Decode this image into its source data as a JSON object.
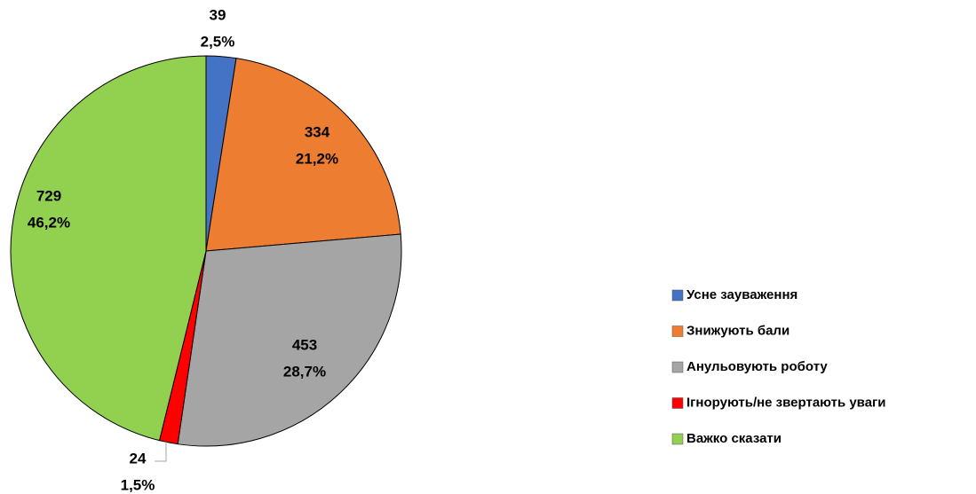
{
  "chart_data": {
    "type": "pie",
    "categories": [
      "Усне зауваження",
      "Знижують бали",
      "Анульовують роботу",
      "Ігнорують/не звертають уваги",
      "Важко сказати"
    ],
    "values": [
      39,
      334,
      453,
      24,
      729
    ],
    "percent_labels": [
      "2,5%",
      "21,2%",
      "28,7%",
      "1,5%",
      "46,2%"
    ],
    "colors": [
      "#4472c4",
      "#ed7d31",
      "#a5a5a5",
      "#ff0000",
      "#92d050"
    ],
    "legend": "right"
  }
}
